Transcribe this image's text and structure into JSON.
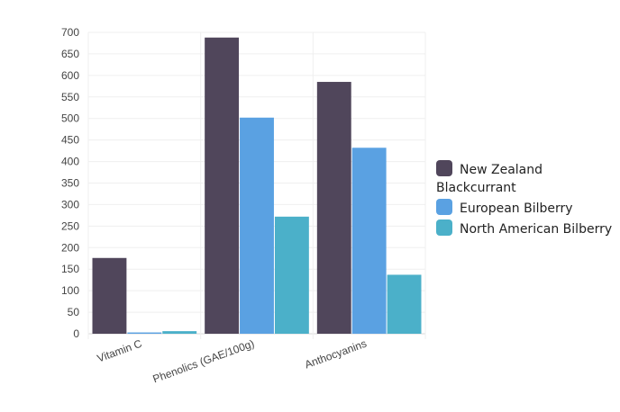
{
  "chart_data": {
    "type": "bar",
    "title": "",
    "xlabel": "",
    "ylabel": "",
    "ylim": [
      0,
      700
    ],
    "yticks": [
      0,
      50,
      100,
      150,
      200,
      250,
      300,
      350,
      400,
      450,
      500,
      550,
      600,
      650,
      700
    ],
    "grid": true,
    "legend_position": "right",
    "categories": [
      "Vitamin C",
      "Phenolics (GAE/100g)",
      "Anthocyanins"
    ],
    "series": [
      {
        "name": "New Zealand Blackcurrant",
        "color": "#50465b",
        "values": [
          176,
          688,
          585
        ]
      },
      {
        "name": "European Bilberry",
        "color": "#5aa1e2",
        "values": [
          3,
          502,
          432
        ]
      },
      {
        "name": "North American Bilberry",
        "color": "#4bb0c9",
        "values": [
          6,
          272,
          137
        ]
      }
    ]
  }
}
